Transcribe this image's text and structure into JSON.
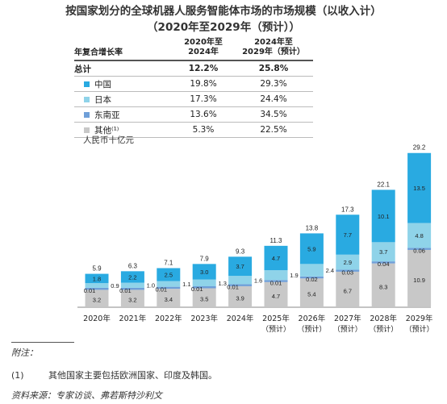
{
  "title_line1": "按国家划分的全球机器人服务智能体市场的市场规模（以收入计）",
  "title_line2": "（2020年至2029年（预计））",
  "cagr_table": {
    "header_label": "年复合增长率",
    "col1_line1": "2020年至",
    "col1_line2": "2024年",
    "col2_line1": "2024年至",
    "col2_line2": "2029年（预计）",
    "rows": [
      {
        "label": "总计",
        "v1": "12.2%",
        "v2": "25.8%"
      },
      {
        "label": "中国",
        "v1": "19.8%",
        "v2": "29.3%",
        "color": "#29aae1"
      },
      {
        "label": "日本",
        "v1": "17.3%",
        "v2": "24.4%",
        "color": "#8fd3e9"
      },
      {
        "label": "东南亚",
        "v1": "13.6%",
        "v2": "34.5%",
        "color": "#6f9fd8"
      },
      {
        "label": "其他⁽¹⁾",
        "v1": "5.3%",
        "v2": "22.5%",
        "color": "#c8c8c8"
      }
    ]
  },
  "unit_label": "人民币十亿元",
  "chart_data": {
    "type": "bar",
    "stacked": true,
    "categories": [
      "2020年",
      "2021年",
      "2022年",
      "2023年",
      "2024年",
      "2025年",
      "2026年",
      "2027年",
      "2028年",
      "2029年"
    ],
    "category_sublabels": [
      "",
      "",
      "",
      "",
      "",
      "（预计）",
      "（预计）",
      "（预计）",
      "（预计）",
      "（预计）"
    ],
    "totals": [
      "5.9",
      "6.3",
      "7.1",
      "7.9",
      "9.3",
      "11.3",
      "13.8",
      "17.3",
      "22.1",
      "29.2"
    ],
    "series": [
      {
        "name": "其他",
        "color": "#c8c8c8",
        "values": [
          3.2,
          3.2,
          3.4,
          3.5,
          3.9,
          4.7,
          5.4,
          6.7,
          8.3,
          10.9
        ],
        "labels": [
          "3.2",
          "3.2",
          "3.4",
          "3.5",
          "3.9",
          "4.7",
          "5.4",
          "6.7",
          "8.3",
          "10.9"
        ]
      },
      {
        "name": "东南亚",
        "color": "#6f9fd8",
        "values": [
          0.01,
          0.01,
          0.01,
          0.01,
          0.01,
          0.01,
          0.02,
          0.03,
          0.04,
          0.06
        ],
        "labels": [
          "0.01",
          "0.01",
          "0.01",
          "0.01",
          "0.01",
          "0.01",
          "0.02",
          "0.03",
          "0.04",
          "0.06"
        ]
      },
      {
        "name": "日本",
        "color": "#8fd3e9",
        "values": [
          0.9,
          1.0,
          1.1,
          1.3,
          1.6,
          1.9,
          2.4,
          2.9,
          3.7,
          4.8
        ],
        "labels": [
          "0.9",
          "1.0",
          "1.1",
          "1.3",
          "1.6",
          "1.9",
          "2.4",
          "2.9",
          "3.7",
          "4.8"
        ]
      },
      {
        "name": "中国",
        "color": "#29aae1",
        "values": [
          1.8,
          2.2,
          2.5,
          3.0,
          3.7,
          4.7,
          5.9,
          7.7,
          10.1,
          13.5
        ],
        "labels": [
          "1.8",
          "2.2",
          "2.5",
          "3.0",
          "3.7",
          "4.7",
          "5.9",
          "7.7",
          "10.1",
          "13.5"
        ]
      }
    ]
  },
  "notes": {
    "head": "附注：",
    "n1_num": "(1)",
    "n1_text": "其他国家主要包括欧洲国家、印度及韩国。",
    "source": "资料来源：专家访谈、弗若斯特沙利文"
  }
}
